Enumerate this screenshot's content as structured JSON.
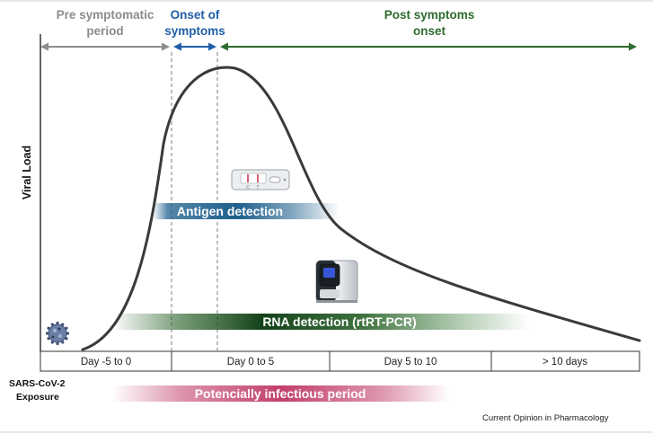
{
  "phases": {
    "pre": {
      "line1": "Pre symptomatic",
      "line2": "period",
      "color": "#8c8c8c"
    },
    "onset": {
      "line1": "Onset of",
      "line2": "symptoms",
      "color": "#1f5fa8"
    },
    "post": {
      "line1": "Post symptoms",
      "line2": "onset",
      "color": "#2e6b2e"
    }
  },
  "y_axis_label": "Viral Load",
  "timeline": [
    "Day -5 to 0",
    "Day 0 to 5",
    "Day 5 to 10",
    "> 10 days"
  ],
  "bands": {
    "antigen": {
      "label": "Antigen detection",
      "color": "#1e5f8c"
    },
    "rna": {
      "label": "RNA  detection (rtRT-PCR)",
      "color": "#1f5a1f"
    },
    "infectious": {
      "label": "Potencially infectious period",
      "color": "#c2406a"
    }
  },
  "exposure": {
    "line1": "SARS-CoV-2",
    "line2": "Exposure"
  },
  "credit": "Current Opinion in Pharmacology",
  "icons": {
    "virus": "sars-cov-2-virus-icon",
    "antigen_test": "antigen-test-cassette-icon",
    "pcr_machine": "pcr-machine-icon"
  }
}
